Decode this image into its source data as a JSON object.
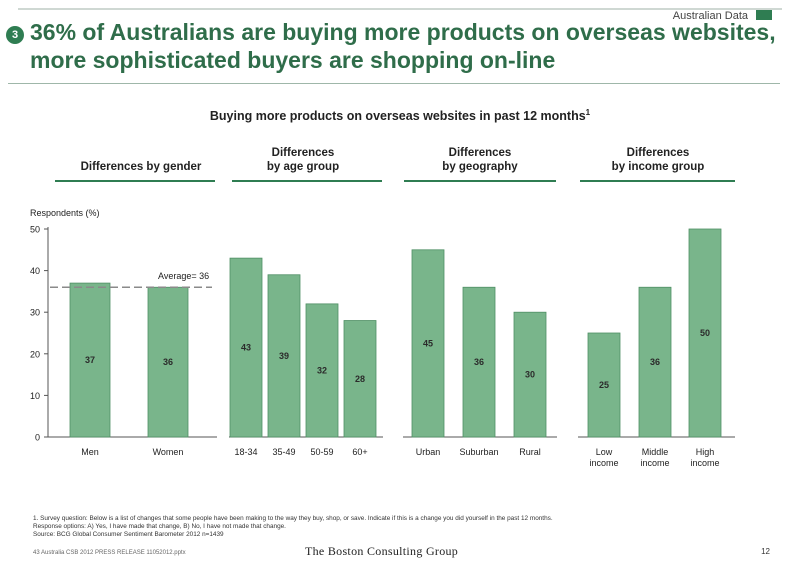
{
  "header": {
    "tag": "Australian Data",
    "badge": "3",
    "title": "36% of Australians are buying more products on overseas websites, more sophisticated buyers are shopping on-line"
  },
  "chart_data": {
    "type": "bar",
    "title": "Buying more products on overseas websites in past 12 months",
    "title_footnote_marker": "1",
    "ylabel": "Respondents (%)",
    "ylim": [
      0,
      50
    ],
    "yticks": [
      0,
      10,
      20,
      30,
      40,
      50
    ],
    "reference_line": {
      "label": "Average= 36",
      "value": 36
    },
    "colors": {
      "bar": "#79b58b",
      "bar_edge": "#4f8f64",
      "group_line": "#2f7d52",
      "axis": "#555555"
    },
    "groups": [
      {
        "label": "Differences by gender",
        "categories": [
          "Men",
          "Women"
        ],
        "values": [
          37,
          36
        ]
      },
      {
        "label": "Differences by age group",
        "categories": [
          "18-34",
          "35-49",
          "50-59",
          "60+"
        ],
        "values": [
          43,
          39,
          32,
          28
        ]
      },
      {
        "label": "Differences by geography",
        "categories": [
          "Urban",
          "Suburban",
          "Rural"
        ],
        "values": [
          45,
          36,
          30
        ]
      },
      {
        "label": "Differences by income group",
        "categories": [
          "Low income",
          "Middle income",
          "High income"
        ],
        "values": [
          25,
          36,
          50
        ]
      }
    ]
  },
  "footer": {
    "footnote_line1": "1. Survey question: Below is a list of changes that some people have been making to the way they buy, shop, or save. Indicate if this is a change you did yourself in the past 12 months.",
    "footnote_line2": "Response options: A) Yes, I have made that change, B) No, I have not made that change.",
    "source": "Source: BCG Global Consumer Sentiment Barometer 2012 n=1439",
    "file_ref": "43 Australia CSB 2012 PRESS RELEASE 11052012.pptx",
    "brand": "The Boston Consulting Group",
    "page_number": "12"
  }
}
